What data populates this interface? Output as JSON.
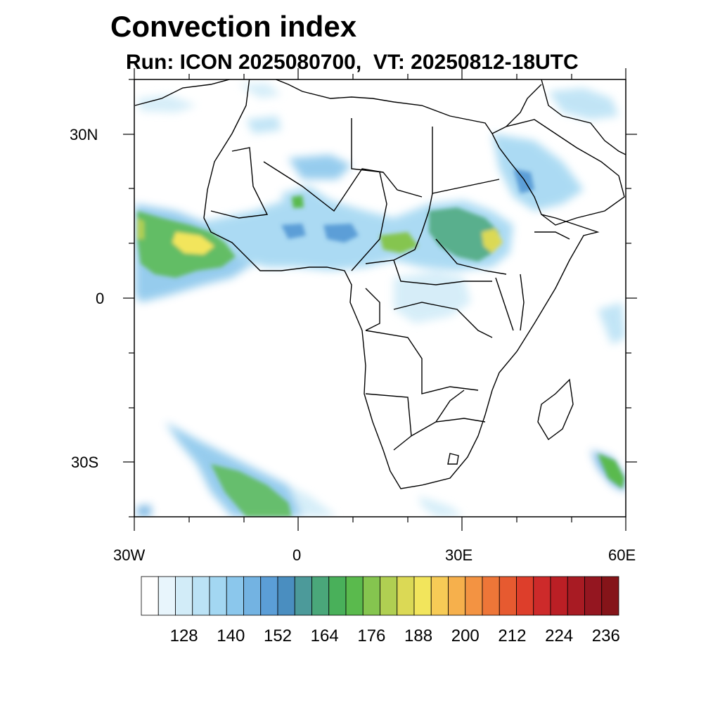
{
  "header": {
    "title": "Convection index",
    "subtitle": "Run: ICON 2025080700,  VT: 20250812-18UTC"
  },
  "map": {
    "lon_range": [
      -30,
      60
    ],
    "lat_range": [
      -40,
      40
    ],
    "y_tick_labels": [
      "30N",
      "0",
      "30S"
    ],
    "x_tick_labels": [
      "30W",
      "0",
      "30E",
      "60E"
    ]
  },
  "colorbar": {
    "colors": [
      "#ffffff",
      "#e8f5fc",
      "#d2ecf8",
      "#bbe2f5",
      "#a3d7f2",
      "#8bc7ec",
      "#73b3e2",
      "#5b9ed7",
      "#4a8ec0",
      "#4c9a9a",
      "#4aa77a",
      "#49b05a",
      "#5aba4d",
      "#85c54f",
      "#b0cf52",
      "#dbd955",
      "#f2e55c",
      "#f7cb56",
      "#f6b04c",
      "#f39342",
      "#ee7638",
      "#e65a30",
      "#dd3e2b",
      "#cd2a2a",
      "#bb1f25",
      "#a81b23",
      "#941620",
      "#851419"
    ],
    "labels": [
      "128",
      "140",
      "152",
      "164",
      "176",
      "188",
      "200",
      "212",
      "224",
      "236"
    ]
  }
}
